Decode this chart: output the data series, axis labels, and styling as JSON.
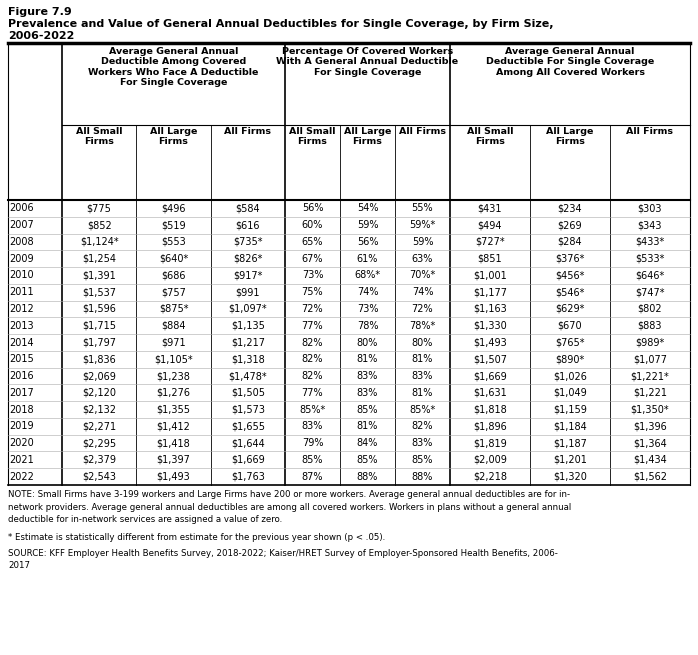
{
  "figure_label": "Figure 7.9",
  "title_line1": "Prevalence and Value of General Annual Deductibles for Single Coverage, by Firm Size,",
  "title_line2": "2006-2022",
  "col_group_headers": [
    "Average General Annual\nDeductible Among Covered\nWorkers Who Face A Deductible\nFor Single Coverage",
    "Percentage Of Covered Workers\nWith A General Annual Deductible\nFor Single Coverage",
    "Average General Annual\nDeductible For Single Coverage\nAmong All Covered Workers"
  ],
  "sub_headers": [
    "All Small\nFirms",
    "All Large\nFirms",
    "All Firms"
  ],
  "years": [
    "2006",
    "2007",
    "2008",
    "2009",
    "2010",
    "2011",
    "2012",
    "2013",
    "2014",
    "2015",
    "2016",
    "2017",
    "2018",
    "2019",
    "2020",
    "2021",
    "2022"
  ],
  "col1": [
    [
      "$775",
      "$496",
      "$584"
    ],
    [
      "$852",
      "$519",
      "$616"
    ],
    [
      "$1,124*",
      "$553",
      "$735*"
    ],
    [
      "$1,254",
      "$640*",
      "$826*"
    ],
    [
      "$1,391",
      "$686",
      "$917*"
    ],
    [
      "$1,537",
      "$757",
      "$991"
    ],
    [
      "$1,596",
      "$875*",
      "$1,097*"
    ],
    [
      "$1,715",
      "$884",
      "$1,135"
    ],
    [
      "$1,797",
      "$971",
      "$1,217"
    ],
    [
      "$1,836",
      "$1,105*",
      "$1,318"
    ],
    [
      "$2,069",
      "$1,238",
      "$1,478*"
    ],
    [
      "$2,120",
      "$1,276",
      "$1,505"
    ],
    [
      "$2,132",
      "$1,355",
      "$1,573"
    ],
    [
      "$2,271",
      "$1,412",
      "$1,655"
    ],
    [
      "$2,295",
      "$1,418",
      "$1,644"
    ],
    [
      "$2,379",
      "$1,397",
      "$1,669"
    ],
    [
      "$2,543",
      "$1,493",
      "$1,763"
    ]
  ],
  "col2": [
    [
      "56%",
      "54%",
      "55%"
    ],
    [
      "60%",
      "59%",
      "59%*"
    ],
    [
      "65%",
      "56%",
      "59%"
    ],
    [
      "67%",
      "61%",
      "63%"
    ],
    [
      "73%",
      "68%*",
      "70%*"
    ],
    [
      "75%",
      "74%",
      "74%"
    ],
    [
      "72%",
      "73%",
      "72%"
    ],
    [
      "77%",
      "78%",
      "78%*"
    ],
    [
      "82%",
      "80%",
      "80%"
    ],
    [
      "82%",
      "81%",
      "81%"
    ],
    [
      "82%",
      "83%",
      "83%"
    ],
    [
      "77%",
      "83%",
      "81%"
    ],
    [
      "85%*",
      "85%",
      "85%*"
    ],
    [
      "83%",
      "81%",
      "82%"
    ],
    [
      "79%",
      "84%",
      "83%"
    ],
    [
      "85%",
      "85%",
      "85%"
    ],
    [
      "87%",
      "88%",
      "88%"
    ]
  ],
  "col3": [
    [
      "$431",
      "$234",
      "$303"
    ],
    [
      "$494",
      "$269",
      "$343"
    ],
    [
      "$727*",
      "$284",
      "$433*"
    ],
    [
      "$851",
      "$376*",
      "$533*"
    ],
    [
      "$1,001",
      "$456*",
      "$646*"
    ],
    [
      "$1,177",
      "$546*",
      "$747*"
    ],
    [
      "$1,163",
      "$629*",
      "$802"
    ],
    [
      "$1,330",
      "$670",
      "$883"
    ],
    [
      "$1,493",
      "$765*",
      "$989*"
    ],
    [
      "$1,507",
      "$890*",
      "$1,077"
    ],
    [
      "$1,669",
      "$1,026",
      "$1,221*"
    ],
    [
      "$1,631",
      "$1,049",
      "$1,221"
    ],
    [
      "$1,818",
      "$1,159",
      "$1,350*"
    ],
    [
      "$1,896",
      "$1,184",
      "$1,396"
    ],
    [
      "$1,819",
      "$1,187",
      "$1,364"
    ],
    [
      "$2,009",
      "$1,201",
      "$1,434"
    ],
    [
      "$2,218",
      "$1,320",
      "$1,562"
    ]
  ],
  "note_lines": [
    "NOTE: Small Firms have 3-199 workers and Large Firms have 200 or more workers. Average general annual deductibles are for in-",
    "network providers. Average general annual deductibles are among all covered workers. Workers in plans without a general annual",
    "deductible for in-network services are assigned a value of zero."
  ],
  "footnote": "* Estimate is statistically different from estimate for the previous year shown (p < .05).",
  "source": "SOURCE: KFF Employer Health Benefits Survey, 2018-2022; Kaiser/HRET Survey of Employer-Sponsored Health Benefits, 2006-2017"
}
